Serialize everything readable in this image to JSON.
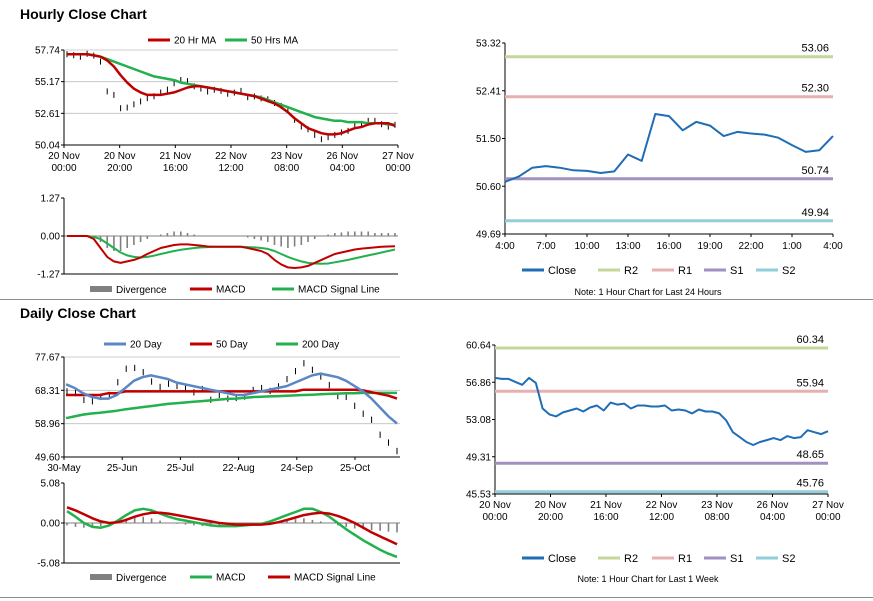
{
  "sections": {
    "hourly_title": "Hourly Close Chart",
    "daily_title": "Daily Close Chart"
  },
  "colors": {
    "ma_red": "#c00000",
    "ma_green": "#22b14c",
    "ma_blue": "#5b87c5",
    "close_blue": "#1f6db5",
    "r2": "#c4d79b",
    "r1": "#e6b0b0",
    "s1": "#a291c0",
    "s2": "#92cddc",
    "divergence": "#808080"
  },
  "chart_data": [
    {
      "id": "hourly_price",
      "type": "line",
      "title": "",
      "ylim": [
        50.04,
        57.74
      ],
      "y_ticks": [
        "57.74",
        "55.17",
        "52.61",
        "50.04"
      ],
      "x_ticks": [
        [
          "20 Nov",
          "00:00"
        ],
        [
          "20 Nov",
          "20:00"
        ],
        [
          "21 Nov",
          "16:00"
        ],
        [
          "22 Nov",
          "12:00"
        ],
        [
          "23 Nov",
          "08:00"
        ],
        [
          "26 Nov",
          "04:00"
        ],
        [
          "27 Nov",
          "00:00"
        ]
      ],
      "legend": [
        "20 Hr MA",
        "50 Hrs MA"
      ],
      "series": [
        {
          "name": "Price",
          "values": [
            57.4,
            57.3,
            57.3,
            57.5,
            57.3,
            56.8,
            54.5,
            54.0,
            53.0,
            53.1,
            53.4,
            53.5,
            53.8,
            54.1,
            54.3,
            54.6,
            55.0,
            55.4,
            55.2,
            54.8,
            54.7,
            54.5,
            54.4,
            54.3,
            54.3,
            54.3,
            54.3,
            54.0,
            54.0,
            53.8,
            53.7,
            53.5,
            53.3,
            52.8,
            52.1,
            51.6,
            51.3,
            50.9,
            50.6,
            50.6,
            50.9,
            51.1,
            51.3,
            51.6,
            51.8,
            51.9,
            52.0,
            51.8,
            51.5,
            51.7
          ]
        },
        {
          "name": "20 Hr MA",
          "values": [
            57.4,
            57.4,
            57.4,
            57.4,
            57.3,
            57.2,
            56.9,
            56.4,
            55.7,
            55.1,
            54.6,
            54.3,
            54.1,
            54.1,
            54.1,
            54.2,
            54.3,
            54.5,
            54.7,
            54.8,
            54.8,
            54.7,
            54.6,
            54.5,
            54.4,
            54.3,
            54.2,
            54.1,
            54.0,
            53.8,
            53.6,
            53.4,
            53.1,
            52.7,
            52.2,
            51.8,
            51.4,
            51.2,
            51.0,
            50.9,
            50.9,
            51.0,
            51.2,
            51.4,
            51.5,
            51.7,
            51.8,
            51.8,
            51.8,
            51.6
          ]
        },
        {
          "name": "50 Hrs MA",
          "values": [
            57.4,
            57.4,
            57.4,
            57.4,
            57.3,
            57.2,
            57.0,
            56.8,
            56.6,
            56.4,
            56.2,
            56.0,
            55.8,
            55.6,
            55.5,
            55.4,
            55.3,
            55.1,
            55.0,
            54.9,
            54.8,
            54.7,
            54.6,
            54.5,
            54.4,
            54.3,
            54.2,
            54.1,
            54.0,
            53.9,
            53.7,
            53.5,
            53.3,
            53.1,
            52.9,
            52.7,
            52.5,
            52.3,
            52.2,
            52.1,
            52.0,
            52.0,
            51.9,
            51.9,
            51.9,
            51.8,
            51.8,
            51.8,
            51.7,
            51.7
          ]
        }
      ]
    },
    {
      "id": "hourly_macd",
      "type": "bar",
      "ylim": [
        -1.27,
        1.27
      ],
      "y_ticks": [
        "1.27",
        "0.00",
        "-1.27"
      ],
      "legend": [
        "Divergence",
        "MACD",
        "MACD Signal Line"
      ],
      "series": [
        {
          "name": "Divergence",
          "values": [
            0,
            0,
            0,
            0,
            -0.05,
            -0.2,
            -0.4,
            -0.5,
            -0.5,
            -0.4,
            -0.3,
            -0.2,
            -0.1,
            0,
            0.05,
            0.1,
            0.15,
            0.15,
            0.1,
            0.05,
            0,
            0,
            0,
            0,
            0,
            0,
            0,
            -0.05,
            -0.1,
            -0.15,
            -0.2,
            -0.3,
            -0.35,
            -0.4,
            -0.35,
            -0.3,
            -0.2,
            -0.1,
            0,
            0.05,
            0.1,
            0.12,
            0.15,
            0.15,
            0.15,
            0.15,
            0.1,
            0.1,
            0.1,
            0.1
          ]
        },
        {
          "name": "MACD",
          "values": [
            0,
            0,
            0,
            0,
            -0.1,
            -0.4,
            -0.7,
            -0.85,
            -0.9,
            -0.85,
            -0.8,
            -0.72,
            -0.6,
            -0.5,
            -0.4,
            -0.35,
            -0.3,
            -0.28,
            -0.28,
            -0.3,
            -0.32,
            -0.35,
            -0.36,
            -0.36,
            -0.36,
            -0.36,
            -0.36,
            -0.4,
            -0.45,
            -0.5,
            -0.6,
            -0.8,
            -0.95,
            -1.05,
            -1.07,
            -1.05,
            -1.0,
            -0.9,
            -0.8,
            -0.7,
            -0.6,
            -0.55,
            -0.5,
            -0.45,
            -0.42,
            -0.4,
            -0.38,
            -0.36,
            -0.35,
            -0.34
          ]
        },
        {
          "name": "MACD Signal Line",
          "values": [
            0,
            0,
            0,
            0,
            -0.03,
            -0.1,
            -0.25,
            -0.4,
            -0.55,
            -0.65,
            -0.7,
            -0.72,
            -0.7,
            -0.66,
            -0.6,
            -0.55,
            -0.5,
            -0.46,
            -0.43,
            -0.4,
            -0.38,
            -0.37,
            -0.36,
            -0.36,
            -0.36,
            -0.36,
            -0.36,
            -0.37,
            -0.38,
            -0.4,
            -0.43,
            -0.5,
            -0.6,
            -0.7,
            -0.78,
            -0.85,
            -0.9,
            -0.92,
            -0.93,
            -0.92,
            -0.88,
            -0.84,
            -0.8,
            -0.75,
            -0.7,
            -0.65,
            -0.6,
            -0.55,
            -0.5,
            -0.45
          ]
        }
      ]
    },
    {
      "id": "hourly_close_24h",
      "type": "line",
      "ylim": [
        49.69,
        53.32
      ],
      "y_ticks": [
        "53.32",
        "52.41",
        "51.50",
        "50.60",
        "49.69"
      ],
      "x_ticks": [
        "4:00",
        "7:00",
        "10:00",
        "13:00",
        "16:00",
        "19:00",
        "22:00",
        "1:00",
        "4:00"
      ],
      "levels": [
        {
          "name": "R2",
          "value": 53.06,
          "label": "53.06"
        },
        {
          "name": "R1",
          "value": 52.3,
          "label": "52.30"
        },
        {
          "name": "S1",
          "value": 50.74,
          "label": "50.74"
        },
        {
          "name": "S2",
          "value": 49.94,
          "label": "49.94"
        }
      ],
      "legend": [
        "Close",
        "R2",
        "R1",
        "S1",
        "S2"
      ],
      "note": "Note: 1 Hour Chart for Last 24 Hours",
      "x": [
        0,
        1,
        2,
        3,
        4,
        5,
        6,
        7,
        8,
        9,
        10,
        11,
        12,
        13,
        14,
        15,
        16,
        17,
        18,
        19,
        20,
        21,
        22,
        23,
        24
      ],
      "values": [
        50.68,
        50.78,
        50.95,
        50.98,
        50.95,
        50.9,
        50.89,
        50.85,
        50.88,
        51.2,
        51.08,
        51.97,
        51.93,
        51.66,
        51.82,
        51.75,
        51.55,
        51.63,
        51.6,
        51.58,
        51.52,
        51.38,
        51.25,
        51.28,
        51.55
      ]
    },
    {
      "id": "daily_price",
      "type": "line",
      "ylim": [
        49.6,
        77.67
      ],
      "y_ticks": [
        "77.67",
        "68.31",
        "58.96",
        "49.60"
      ],
      "x_ticks": [
        "30-May",
        "25-Jun",
        "25-Jul",
        "22-Aug",
        "24-Sep",
        "25-Oct"
      ],
      "legend": [
        "20 Day",
        "50 Day",
        "200 Day"
      ],
      "series": [
        {
          "name": "Price",
          "values": [
            68,
            67.5,
            66,
            65.5,
            66.5,
            67,
            71,
            74,
            74.5,
            73.5,
            71,
            69,
            70,
            70,
            69,
            68,
            68.5,
            66,
            67,
            66,
            66.5,
            67,
            68,
            68.5,
            68.5,
            69.5,
            71,
            74,
            76,
            74,
            72,
            70,
            67,
            66,
            64,
            62,
            60,
            56,
            54,
            51
          ]
        },
        {
          "name": "20 Day",
          "values": [
            70,
            69,
            67.5,
            66.5,
            66,
            66,
            67,
            69,
            71,
            72,
            72.5,
            72,
            71.5,
            70.5,
            70,
            69.5,
            69,
            68.5,
            68,
            67.5,
            67,
            67,
            67.5,
            68,
            68.5,
            69,
            69.5,
            70.5,
            71.5,
            72.5,
            73,
            72.5,
            72,
            71,
            69.5,
            68,
            66,
            63.5,
            61,
            59
          ]
        },
        {
          "name": "50 Day",
          "values": [
            67,
            67,
            67,
            67,
            67,
            67.5,
            67.5,
            68,
            68,
            68,
            68,
            68,
            68,
            68,
            68,
            68,
            68,
            68,
            68,
            68,
            68,
            68,
            68,
            68,
            68,
            68,
            68,
            68,
            68.5,
            68.5,
            68.5,
            68.5,
            68.5,
            68.5,
            68.5,
            68.3,
            67.8,
            67.3,
            66.8,
            66
          ]
        },
        {
          "name": "200 Day",
          "values": [
            60.5,
            61,
            61.5,
            61.8,
            62,
            62.3,
            62.6,
            63,
            63.3,
            63.6,
            63.9,
            64.2,
            64.5,
            64.7,
            64.9,
            65.1,
            65.3,
            65.5,
            65.7,
            65.9,
            66,
            66.2,
            66.4,
            66.5,
            66.6,
            66.7,
            66.8,
            66.9,
            67,
            67.1,
            67.2,
            67.3,
            67.4,
            67.5,
            67.5,
            67.6,
            67.6,
            67.6,
            67.6,
            67.6
          ]
        }
      ]
    },
    {
      "id": "daily_macd",
      "type": "bar",
      "ylim": [
        -5.08,
        5.08
      ],
      "y_ticks": [
        "5.08",
        "0.00",
        "-5.08"
      ],
      "legend": [
        "Divergence",
        "MACD",
        "MACD Signal Line"
      ],
      "series": [
        {
          "name": "Divergence",
          "values": [
            -0.3,
            -0.5,
            -0.6,
            -0.6,
            -0.4,
            -0.2,
            0.3,
            0.6,
            0.8,
            0.8,
            0.6,
            0.3,
            0,
            -0.1,
            -0.2,
            -0.3,
            -0.4,
            -0.4,
            -0.3,
            -0.2,
            -0.2,
            -0.1,
            0,
            0,
            0.1,
            0.2,
            0.4,
            0.5,
            0.6,
            0.4,
            0.2,
            0,
            -0.3,
            -0.5,
            -0.7,
            -0.8,
            -0.9,
            -1.0,
            -1.1,
            -1.2
          ]
        },
        {
          "name": "MACD",
          "values": [
            1.5,
            0.8,
            0,
            -0.5,
            -0.6,
            -0.3,
            0.3,
            1.0,
            1.6,
            1.8,
            1.6,
            1.2,
            0.8,
            0.5,
            0.3,
            0.1,
            -0.1,
            -0.3,
            -0.4,
            -0.4,
            -0.4,
            -0.3,
            -0.2,
            -0.1,
            0.2,
            0.6,
            1.0,
            1.4,
            1.8,
            1.8,
            1.4,
            0.8,
            0,
            -0.8,
            -1.5,
            -2.2,
            -2.8,
            -3.4,
            -3.9,
            -4.3
          ]
        },
        {
          "name": "MACD Signal Line",
          "values": [
            2.0,
            1.6,
            1.1,
            0.6,
            0.2,
            0,
            0.1,
            0.4,
            0.8,
            1.1,
            1.3,
            1.3,
            1.2,
            1.0,
            0.8,
            0.6,
            0.4,
            0.2,
            0,
            -0.1,
            -0.2,
            -0.2,
            -0.2,
            -0.2,
            -0.1,
            0.1,
            0.4,
            0.7,
            1.0,
            1.2,
            1.3,
            1.2,
            0.9,
            0.5,
            0,
            -0.6,
            -1.2,
            -1.7,
            -2.2,
            -2.7
          ]
        }
      ]
    },
    {
      "id": "daily_close_week",
      "type": "line",
      "ylim": [
        45.53,
        60.64
      ],
      "y_ticks": [
        "60.64",
        "56.86",
        "53.08",
        "49.31",
        "45.53"
      ],
      "x_ticks": [
        [
          "20 Nov",
          "00:00"
        ],
        [
          "20 Nov",
          "20:00"
        ],
        [
          "21 Nov",
          "16:00"
        ],
        [
          "22 Nov",
          "12:00"
        ],
        [
          "23 Nov",
          "08:00"
        ],
        [
          "26 Nov",
          "04:00"
        ],
        [
          "27 Nov",
          "00:00"
        ]
      ],
      "levels": [
        {
          "name": "R2",
          "value": 60.34,
          "label": "60.34"
        },
        {
          "name": "R1",
          "value": 55.94,
          "label": "55.94"
        },
        {
          "name": "S1",
          "value": 48.65,
          "label": "48.65"
        },
        {
          "name": "S2",
          "value": 45.76,
          "label": "45.76"
        }
      ],
      "legend": [
        "Close",
        "R2",
        "R1",
        "S1",
        "S2"
      ],
      "note": "Note: 1 Hour Chart for Last 1 Week",
      "values": [
        57.3,
        57.2,
        57.2,
        56.9,
        56.6,
        57.3,
        56.8,
        54.2,
        53.6,
        53.4,
        53.8,
        54.0,
        54.2,
        53.9,
        54.3,
        54.5,
        54.0,
        54.8,
        54.6,
        54.7,
        54.2,
        54.5,
        54.5,
        54.4,
        54.4,
        54.5,
        54.0,
        54.1,
        54.0,
        53.7,
        54.1,
        53.9,
        53.9,
        53.7,
        53.0,
        51.8,
        51.3,
        50.8,
        50.5,
        50.8,
        51.0,
        51.2,
        51.0,
        51.4,
        51.2,
        51.3,
        52.0,
        51.8,
        51.6,
        51.9
      ]
    }
  ]
}
